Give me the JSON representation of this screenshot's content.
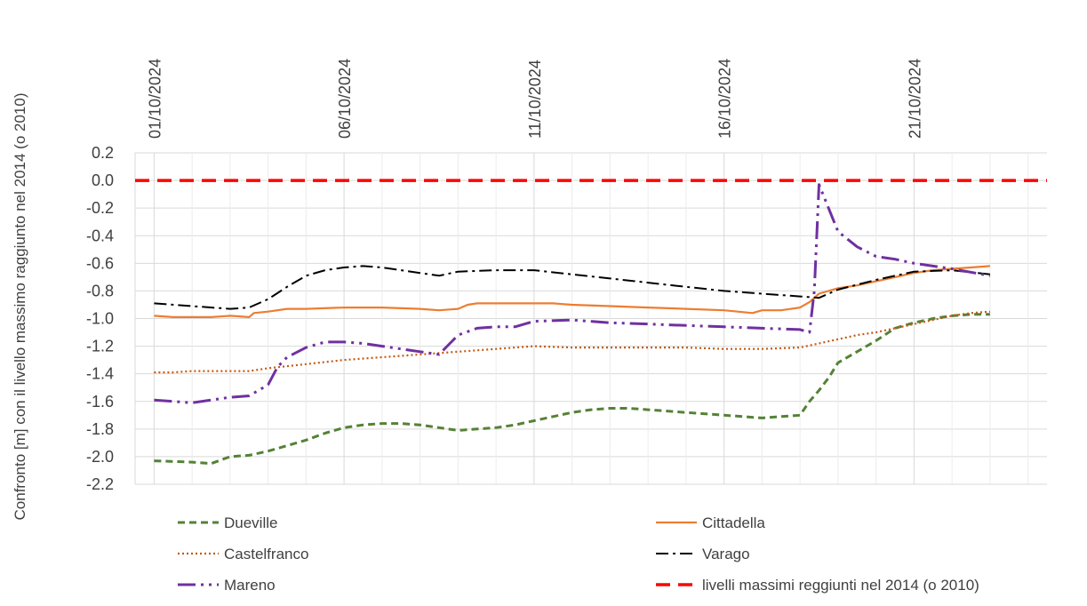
{
  "chart_data": {
    "type": "line",
    "ylabel": "Confronto [m] con il livello massimo raggiunto nel 2014 (o 2010)",
    "xlabel": "",
    "title": "",
    "x_range": [
      "2024-09-30T12:00",
      "2024-10-24T12:00"
    ],
    "x_ticks": [
      "01/10/2024",
      "06/10/2024",
      "11/10/2024",
      "16/10/2024",
      "21/10/2024"
    ],
    "ylim": [
      -2.2,
      0.2
    ],
    "y_ticks": [
      "0.2",
      "0.0",
      "-0.2",
      "-0.4",
      "-0.6",
      "-0.8",
      "-1.0",
      "-1.2",
      "-1.4",
      "-1.6",
      "-1.8",
      "-2.0",
      "-2.2"
    ],
    "grid": true,
    "legend_position": "bottom",
    "series": [
      {
        "name": "Dueville",
        "color": "#548235",
        "style": "dash",
        "x": [
          "2024-10-01",
          "2024-10-02",
          "2024-10-02T12:00",
          "2024-10-03",
          "2024-10-03T12:00",
          "2024-10-04",
          "2024-10-04T12:00",
          "2024-10-05",
          "2024-10-05T12:00",
          "2024-10-06",
          "2024-10-06T12:00",
          "2024-10-07",
          "2024-10-07T12:00",
          "2024-10-08",
          "2024-10-08T12:00",
          "2024-10-09",
          "2024-10-09T12:00",
          "2024-10-10",
          "2024-10-10T12:00",
          "2024-10-11",
          "2024-10-11T12:00",
          "2024-10-12",
          "2024-10-12T12:00",
          "2024-10-13",
          "2024-10-13T12:00",
          "2024-10-14",
          "2024-10-14T12:00",
          "2024-10-15",
          "2024-10-15T12:00",
          "2024-10-16",
          "2024-10-16T12:00",
          "2024-10-17",
          "2024-10-17T12:00",
          "2024-10-18",
          "2024-10-18T06:00",
          "2024-10-18T12:00",
          "2024-10-18T18:00",
          "2024-10-19",
          "2024-10-19T12:00",
          "2024-10-20",
          "2024-10-20T12:00",
          "2024-10-21",
          "2024-10-21T12:00",
          "2024-10-22",
          "2024-10-22T12:00",
          "2024-10-23"
        ],
        "values": [
          -2.03,
          -2.04,
          -2.05,
          -2.0,
          -1.99,
          -1.96,
          -1.92,
          -1.88,
          -1.83,
          -1.79,
          -1.77,
          -1.76,
          -1.76,
          -1.77,
          -1.79,
          -1.81,
          -1.8,
          -1.79,
          -1.77,
          -1.74,
          -1.71,
          -1.68,
          -1.66,
          -1.65,
          -1.65,
          -1.66,
          -1.67,
          -1.68,
          -1.69,
          -1.7,
          -1.71,
          -1.72,
          -1.71,
          -1.7,
          -1.6,
          -1.52,
          -1.43,
          -1.32,
          -1.24,
          -1.16,
          -1.07,
          -1.03,
          -1.0,
          -0.98,
          -0.97,
          -0.97
        ]
      },
      {
        "name": "Cittadella",
        "color": "#ED7D31",
        "style": "solid",
        "x": [
          "2024-10-01",
          "2024-10-01T12:00",
          "2024-10-02",
          "2024-10-02T12:00",
          "2024-10-03",
          "2024-10-03T12:00",
          "2024-10-03T15:00",
          "2024-10-04",
          "2024-10-04T12:00",
          "2024-10-05",
          "2024-10-06",
          "2024-10-07",
          "2024-10-08",
          "2024-10-08T12:00",
          "2024-10-09",
          "2024-10-09T06:00",
          "2024-10-09T12:00",
          "2024-10-10",
          "2024-10-11",
          "2024-10-11T12:00",
          "2024-10-12",
          "2024-10-13",
          "2024-10-14",
          "2024-10-15",
          "2024-10-16",
          "2024-10-16T18:00",
          "2024-10-17",
          "2024-10-17T12:00",
          "2024-10-18",
          "2024-10-18T06:00",
          "2024-10-18T12:00",
          "2024-10-19",
          "2024-10-19T12:00",
          "2024-10-20",
          "2024-10-20T12:00",
          "2024-10-21",
          "2024-10-21T12:00",
          "2024-10-22",
          "2024-10-22T12:00",
          "2024-10-23"
        ],
        "values": [
          -0.98,
          -0.99,
          -0.99,
          -0.99,
          -0.98,
          -0.99,
          -0.96,
          -0.95,
          -0.93,
          -0.93,
          -0.92,
          -0.92,
          -0.93,
          -0.94,
          -0.93,
          -0.9,
          -0.89,
          -0.89,
          -0.89,
          -0.89,
          -0.9,
          -0.91,
          -0.92,
          -0.93,
          -0.94,
          -0.96,
          -0.94,
          -0.94,
          -0.92,
          -0.88,
          -0.82,
          -0.78,
          -0.76,
          -0.73,
          -0.7,
          -0.67,
          -0.65,
          -0.64,
          -0.63,
          -0.62
        ]
      },
      {
        "name": "Castelfranco",
        "color": "#C55A11",
        "style": "dot",
        "x": [
          "2024-10-01",
          "2024-10-01T12:00",
          "2024-10-02",
          "2024-10-03",
          "2024-10-03T12:00",
          "2024-10-04",
          "2024-10-05",
          "2024-10-06",
          "2024-10-07",
          "2024-10-07T12:00",
          "2024-10-08",
          "2024-10-09",
          "2024-10-10",
          "2024-10-11",
          "2024-10-12",
          "2024-10-13",
          "2024-10-14",
          "2024-10-15",
          "2024-10-16",
          "2024-10-17",
          "2024-10-18",
          "2024-10-18T12:00",
          "2024-10-19",
          "2024-10-19T12:00",
          "2024-10-20",
          "2024-10-20T12:00",
          "2024-10-21",
          "2024-10-21T12:00",
          "2024-10-22",
          "2024-10-22T12:00",
          "2024-10-23"
        ],
        "values": [
          -1.39,
          -1.39,
          -1.38,
          -1.38,
          -1.38,
          -1.36,
          -1.33,
          -1.3,
          -1.28,
          -1.27,
          -1.26,
          -1.24,
          -1.22,
          -1.2,
          -1.21,
          -1.21,
          -1.21,
          -1.21,
          -1.22,
          -1.22,
          -1.21,
          -1.18,
          -1.15,
          -1.12,
          -1.1,
          -1.07,
          -1.04,
          -1.01,
          -0.98,
          -0.96,
          -0.95
        ]
      },
      {
        "name": "Varago",
        "color": "#000000",
        "style": "dashdot",
        "x": [
          "2024-10-01",
          "2024-10-02",
          "2024-10-03",
          "2024-10-03T12:00",
          "2024-10-04",
          "2024-10-04T12:00",
          "2024-10-05",
          "2024-10-05T12:00",
          "2024-10-06",
          "2024-10-06T12:00",
          "2024-10-07",
          "2024-10-08",
          "2024-10-08T12:00",
          "2024-10-09",
          "2024-10-10",
          "2024-10-11",
          "2024-10-12",
          "2024-10-13",
          "2024-10-14",
          "2024-10-15",
          "2024-10-16",
          "2024-10-17",
          "2024-10-18",
          "2024-10-18T12:00",
          "2024-10-19",
          "2024-10-20",
          "2024-10-21",
          "2024-10-22",
          "2024-10-23"
        ],
        "values": [
          -0.89,
          -0.91,
          -0.93,
          -0.92,
          -0.86,
          -0.77,
          -0.69,
          -0.65,
          -0.63,
          -0.62,
          -0.63,
          -0.67,
          -0.69,
          -0.66,
          -0.65,
          -0.65,
          -0.68,
          -0.71,
          -0.74,
          -0.77,
          -0.8,
          -0.82,
          -0.84,
          -0.85,
          -0.79,
          -0.72,
          -0.66,
          -0.65,
          -0.68
        ]
      },
      {
        "name": "Mareno",
        "color": "#7030A0",
        "style": "longdashdotdot",
        "x": [
          "2024-10-01",
          "2024-10-02",
          "2024-10-02T12:00",
          "2024-10-03",
          "2024-10-03T12:00",
          "2024-10-04",
          "2024-10-04T06:00",
          "2024-10-04T12:00",
          "2024-10-05",
          "2024-10-05T12:00",
          "2024-10-06",
          "2024-10-06T12:00",
          "2024-10-07",
          "2024-10-07T12:00",
          "2024-10-08",
          "2024-10-08T12:00",
          "2024-10-08T18:00",
          "2024-10-09",
          "2024-10-09T12:00",
          "2024-10-10",
          "2024-10-10T12:00",
          "2024-10-11",
          "2024-10-12",
          "2024-10-13",
          "2024-10-14",
          "2024-10-15",
          "2024-10-16",
          "2024-10-17",
          "2024-10-18",
          "2024-10-18T06:00",
          "2024-10-18T09:00",
          "2024-10-18T12:00",
          "2024-10-18T18:00",
          "2024-10-19",
          "2024-10-19T12:00",
          "2024-10-20",
          "2024-10-20T12:00",
          "2024-10-21",
          "2024-10-22",
          "2024-10-23"
        ],
        "values": [
          -1.59,
          -1.61,
          -1.59,
          -1.57,
          -1.56,
          -1.48,
          -1.35,
          -1.28,
          -1.21,
          -1.17,
          -1.17,
          -1.18,
          -1.2,
          -1.22,
          -1.24,
          -1.26,
          -1.19,
          -1.12,
          -1.07,
          -1.06,
          -1.06,
          -1.02,
          -1.01,
          -1.03,
          -1.04,
          -1.05,
          -1.06,
          -1.07,
          -1.08,
          -1.1,
          -0.8,
          -0.03,
          -0.2,
          -0.37,
          -0.48,
          -0.55,
          -0.57,
          -0.6,
          -0.64,
          -0.69
        ]
      },
      {
        "name": "livelli massimi reggiunti nel 2014 (o 2010)",
        "color": "#FF0000",
        "style": "bigdash",
        "x": [
          "2024-09-30T12:00",
          "2024-10-24T12:00"
        ],
        "values": [
          0.0,
          0.0
        ]
      }
    ]
  }
}
